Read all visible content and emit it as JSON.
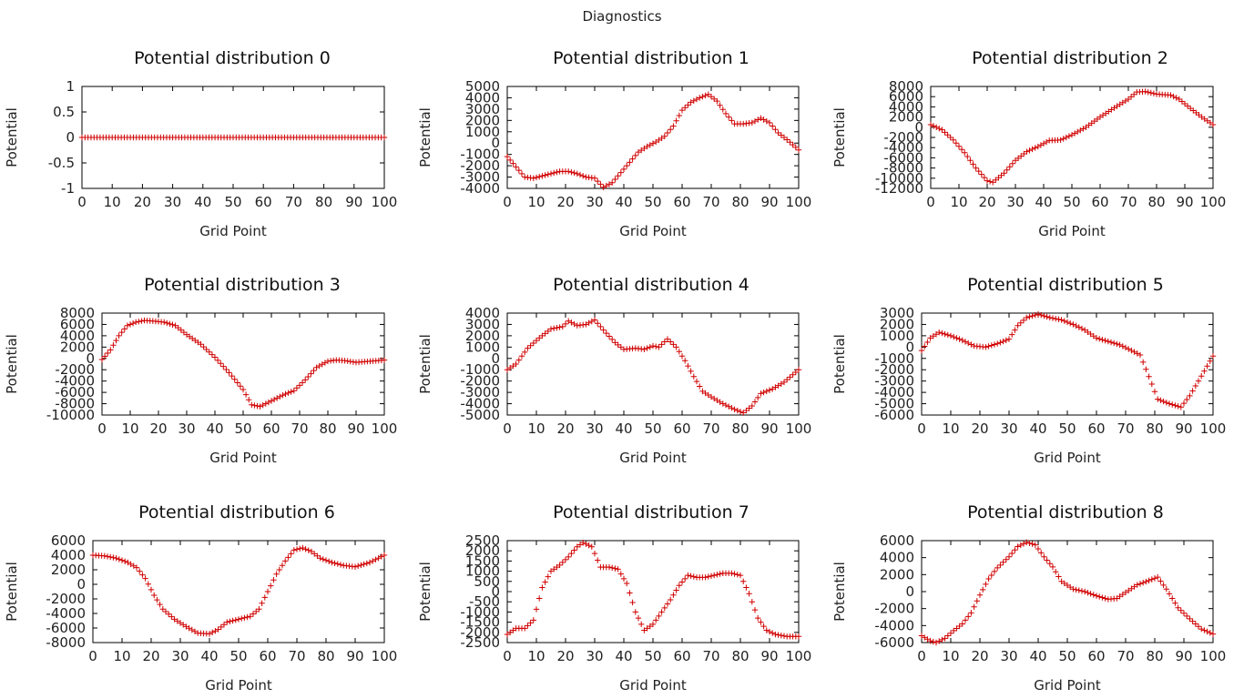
{
  "figure_title": "Diagnostics",
  "colors": {
    "series": "#d00000",
    "frame": "#000000",
    "text": "#222222"
  },
  "chart_data": [
    {
      "type": "scatter",
      "title": "Potential distribution 0",
      "xlabel": "Grid Point",
      "ylabel": "Potential",
      "xlim": [
        0,
        100
      ],
      "ylim": [
        -1,
        1
      ],
      "xticks": [
        "0",
        "10",
        "20",
        "30",
        "40",
        "50",
        "60",
        "70",
        "80",
        "90",
        "100"
      ],
      "yticks": [
        "1",
        "0.5",
        "0",
        "-0.5",
        "-1"
      ],
      "yticks_values": [
        1,
        0.5,
        0,
        -0.5,
        -1
      ],
      "marker": "+",
      "n_points": 101,
      "x": [
        0,
        100
      ],
      "y": [
        0,
        0
      ]
    },
    {
      "type": "scatter",
      "title": "Potential distribution 1",
      "xlabel": "Grid Point",
      "ylabel": "Potential",
      "xlim": [
        0,
        100
      ],
      "ylim": [
        -4000,
        5000
      ],
      "xticks": [
        "0",
        "10",
        "20",
        "30",
        "40",
        "50",
        "60",
        "70",
        "80",
        "90",
        "100"
      ],
      "yticks": [
        "5000",
        "4000",
        "3000",
        "2000",
        "1000",
        "0",
        "-1000",
        "-2000",
        "-3000",
        "-4000"
      ],
      "yticks_values": [
        5000,
        4000,
        3000,
        2000,
        1000,
        0,
        -1000,
        -2000,
        -3000,
        -4000
      ],
      "marker": "+",
      "n_points": 101,
      "x": [
        0,
        3,
        6,
        9,
        12,
        15,
        18,
        21,
        24,
        27,
        30,
        33,
        36,
        39,
        42,
        45,
        48,
        51,
        54,
        57,
        60,
        63,
        66,
        69,
        72,
        75,
        78,
        81,
        84,
        87,
        90,
        93,
        96,
        100
      ],
      "y": [
        -1200,
        -2100,
        -3000,
        -3100,
        -2900,
        -2700,
        -2500,
        -2500,
        -2700,
        -3000,
        -3100,
        -3900,
        -3500,
        -2600,
        -1700,
        -800,
        -300,
        100,
        600,
        1500,
        2900,
        3600,
        4000,
        4300,
        3700,
        2600,
        1700,
        1700,
        1800,
        2200,
        1800,
        900,
        300,
        -600
      ]
    },
    {
      "type": "scatter",
      "title": "Potential distribution 2",
      "xlabel": "Grid Point",
      "ylabel": "Potential",
      "xlim": [
        0,
        100
      ],
      "ylim": [
        -12000,
        8000
      ],
      "xticks": [
        "0",
        "10",
        "20",
        "30",
        "40",
        "50",
        "60",
        "70",
        "80",
        "90",
        "100"
      ],
      "yticks": [
        "8000",
        "6000",
        "4000",
        "2000",
        "0",
        "-2000",
        "-4000",
        "-6000",
        "-8000",
        "-10000",
        "-12000"
      ],
      "yticks_values": [
        8000,
        6000,
        4000,
        2000,
        0,
        -2000,
        -4000,
        -6000,
        -8000,
        -10000,
        -12000
      ],
      "marker": "+",
      "n_points": 101,
      "x": [
        0,
        4,
        8,
        12,
        16,
        20,
        22,
        26,
        30,
        34,
        38,
        42,
        46,
        50,
        55,
        60,
        65,
        70,
        73,
        76,
        80,
        85,
        88,
        92,
        96,
        100
      ],
      "y": [
        500,
        -500,
        -2500,
        -5000,
        -8000,
        -10500,
        -10800,
        -9000,
        -6500,
        -4800,
        -3800,
        -2600,
        -2500,
        -1500,
        0,
        2000,
        3800,
        5500,
        6900,
        7000,
        6500,
        6300,
        5500,
        3700,
        2000,
        500
      ]
    },
    {
      "type": "scatter",
      "title": "Potential distribution 3",
      "xlabel": "Grid Point",
      "ylabel": "Potential",
      "xlim": [
        0,
        100
      ],
      "ylim": [
        -10000,
        8000
      ],
      "xticks": [
        "0",
        "10",
        "20",
        "30",
        "40",
        "50",
        "60",
        "70",
        "80",
        "90",
        "100"
      ],
      "yticks": [
        "8000",
        "6000",
        "4000",
        "2000",
        "0",
        "-2000",
        "-4000",
        "-6000",
        "-8000",
        "-10000"
      ],
      "yticks_values": [
        8000,
        6000,
        4000,
        2000,
        0,
        -2000,
        -4000,
        -6000,
        -8000,
        -10000
      ],
      "marker": "+",
      "n_points": 101,
      "x": [
        0,
        3,
        6,
        9,
        12,
        15,
        18,
        22,
        26,
        30,
        35,
        40,
        45,
        50,
        53,
        56,
        60,
        64,
        68,
        72,
        76,
        80,
        83,
        86,
        90,
        95,
        100
      ],
      "y": [
        -200,
        1500,
        4000,
        5800,
        6400,
        6700,
        6600,
        6400,
        5800,
        4200,
        2500,
        200,
        -2500,
        -5500,
        -8200,
        -8500,
        -7500,
        -6500,
        -5700,
        -3800,
        -1600,
        -500,
        -300,
        -400,
        -700,
        -500,
        -300
      ]
    },
    {
      "type": "scatter",
      "title": "Potential distribution 4",
      "xlabel": "Grid Point",
      "ylabel": "Potential",
      "xlim": [
        0,
        100
      ],
      "ylim": [
        -5000,
        4000
      ],
      "xticks": [
        "0",
        "10",
        "20",
        "30",
        "40",
        "50",
        "60",
        "70",
        "80",
        "90",
        "100"
      ],
      "yticks": [
        "4000",
        "3000",
        "2000",
        "1000",
        "0",
        "-1000",
        "-2000",
        "-3000",
        "-4000",
        "-5000"
      ],
      "yticks_values": [
        4000,
        3000,
        2000,
        1000,
        0,
        -1000,
        -2000,
        -3000,
        -4000,
        -5000
      ],
      "marker": "+",
      "n_points": 101,
      "x": [
        0,
        3,
        7,
        11,
        15,
        19,
        21,
        24,
        27,
        30,
        33,
        37,
        40,
        44,
        47,
        50,
        52,
        55,
        58,
        61,
        64,
        67,
        70,
        74,
        78,
        81,
        84,
        87,
        91,
        95,
        100
      ],
      "y": [
        -1000,
        -500,
        900,
        1800,
        2600,
        2800,
        3300,
        2900,
        3000,
        3400,
        2500,
        1400,
        800,
        900,
        800,
        1100,
        1000,
        1700,
        1000,
        -200,
        -1600,
        -2900,
        -3400,
        -4000,
        -4500,
        -4800,
        -4200,
        -3100,
        -2700,
        -2100,
        -1000
      ]
    },
    {
      "type": "scatter",
      "title": "Potential distribution 5",
      "xlabel": "Grid Point",
      "ylabel": "Potential",
      "xlim": [
        0,
        100
      ],
      "ylim": [
        -6000,
        3000
      ],
      "xticks": [
        "0",
        "10",
        "20",
        "30",
        "40",
        "50",
        "60",
        "70",
        "80",
        "90",
        "100"
      ],
      "yticks": [
        "3000",
        "2000",
        "1000",
        "0",
        "-1000",
        "-2000",
        "-3000",
        "-4000",
        "-5000",
        "-6000"
      ],
      "yticks_values": [
        3000,
        2000,
        1000,
        0,
        -1000,
        -2000,
        -3000,
        -4000,
        -5000,
        -6000
      ],
      "marker": "+",
      "n_points": 101,
      "x": [
        0,
        3,
        6,
        10,
        14,
        18,
        22,
        26,
        30,
        33,
        36,
        40,
        44,
        48,
        52,
        56,
        60,
        64,
        68,
        72,
        75,
        78,
        81,
        85,
        89,
        92,
        95,
        100
      ],
      "y": [
        -300,
        800,
        1300,
        1000,
        600,
        100,
        0,
        300,
        700,
        1900,
        2600,
        2900,
        2600,
        2400,
        2000,
        1500,
        800,
        500,
        200,
        -300,
        -700,
        -2600,
        -4600,
        -5000,
        -5300,
        -4300,
        -3000,
        -800
      ]
    },
    {
      "type": "scatter",
      "title": "Potential distribution 6",
      "xlabel": "Grid Point",
      "ylabel": "Potential",
      "xlim": [
        0,
        100
      ],
      "ylim": [
        -8000,
        6000
      ],
      "xticks": [
        "0",
        "10",
        "20",
        "30",
        "40",
        "50",
        "60",
        "70",
        "80",
        "90",
        "100"
      ],
      "yticks": [
        "6000",
        "4000",
        "2000",
        "0",
        "-2000",
        "-4000",
        "-6000",
        "-8000"
      ],
      "yticks_values": [
        6000,
        4000,
        2000,
        0,
        -2000,
        -4000,
        -6000,
        -8000
      ],
      "marker": "+",
      "n_points": 101,
      "x": [
        0,
        4,
        8,
        12,
        15,
        18,
        21,
        24,
        28,
        32,
        36,
        40,
        43,
        46,
        50,
        54,
        57,
        60,
        63,
        66,
        69,
        72,
        75,
        78,
        82,
        86,
        90,
        95,
        100
      ],
      "y": [
        4000,
        3900,
        3600,
        3000,
        2300,
        800,
        -1500,
        -3400,
        -4800,
        -5800,
        -6700,
        -6800,
        -6200,
        -5200,
        -4800,
        -4400,
        -3400,
        -1000,
        1400,
        3200,
        4700,
        5000,
        4500,
        3600,
        3000,
        2600,
        2400,
        3000,
        4000
      ]
    },
    {
      "type": "scatter",
      "title": "Potential distribution 7",
      "xlabel": "Grid Point",
      "ylabel": "Potential",
      "xlim": [
        0,
        100
      ],
      "ylim": [
        -2500,
        2500
      ],
      "xticks": [
        "0",
        "10",
        "20",
        "30",
        "40",
        "50",
        "60",
        "70",
        "80",
        "90",
        "100"
      ],
      "yticks": [
        "2500",
        "2000",
        "1500",
        "1000",
        "500",
        "0",
        "-500",
        "-1000",
        "-1500",
        "-2000",
        "-2500"
      ],
      "yticks_values": [
        2500,
        2000,
        1500,
        1000,
        500,
        0,
        -500,
        -1000,
        -1500,
        -2000,
        -2500
      ],
      "marker": "+",
      "n_points": 101,
      "x": [
        0,
        3,
        6,
        9,
        12,
        15,
        18,
        21,
        24,
        26,
        29,
        32,
        35,
        38,
        41,
        44,
        47,
        50,
        53,
        56,
        59,
        62,
        65,
        68,
        71,
        74,
        77,
        80,
        83,
        86,
        89,
        92,
        96,
        100
      ],
      "y": [
        -2100,
        -1800,
        -1800,
        -1400,
        200,
        1000,
        1300,
        1700,
        2200,
        2400,
        2200,
        1200,
        1200,
        1100,
        400,
        -1000,
        -1900,
        -1600,
        -1000,
        -400,
        300,
        800,
        700,
        700,
        800,
        900,
        900,
        800,
        -100,
        -1300,
        -1900,
        -2100,
        -2200,
        -2200
      ]
    },
    {
      "type": "scatter",
      "title": "Potential distribution 8",
      "xlabel": "Grid Point",
      "ylabel": "Potential",
      "xlim": [
        0,
        100
      ],
      "ylim": [
        -6000,
        6000
      ],
      "xticks": [
        "0",
        "10",
        "20",
        "30",
        "40",
        "50",
        "60",
        "70",
        "80",
        "90",
        "100"
      ],
      "yticks": [
        "6000",
        "4000",
        "2000",
        "0",
        "-2000",
        "-4000",
        "-6000"
      ],
      "yticks_values": [
        6000,
        4000,
        2000,
        0,
        -2000,
        -4000,
        -6000
      ],
      "marker": "+",
      "n_points": 101,
      "x": [
        0,
        3,
        5,
        8,
        11,
        14,
        17,
        20,
        23,
        26,
        30,
        33,
        36,
        39,
        42,
        45,
        48,
        52,
        56,
        60,
        64,
        67,
        70,
        74,
        78,
        81,
        84,
        88,
        92,
        96,
        100
      ],
      "y": [
        -5200,
        -5800,
        -6000,
        -5500,
        -4600,
        -3800,
        -2500,
        -400,
        1500,
        2800,
        4100,
        5300,
        5800,
        5500,
        4100,
        2900,
        1200,
        300,
        0,
        -500,
        -900,
        -800,
        -100,
        800,
        1300,
        1700,
        300,
        -1900,
        -3200,
        -4400,
        -5000
      ]
    }
  ]
}
